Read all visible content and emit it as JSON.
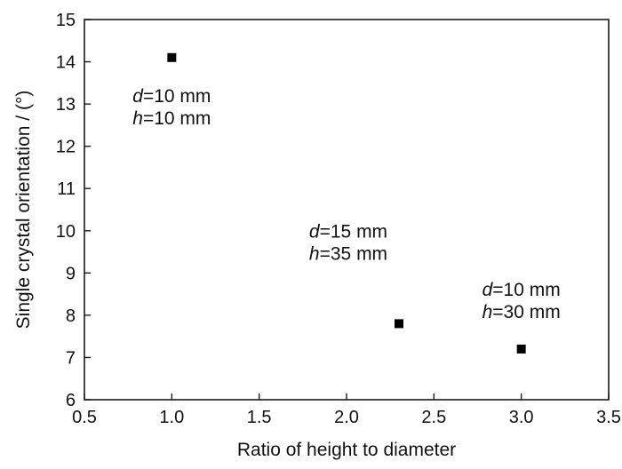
{
  "chart_data": {
    "type": "scatter",
    "title": "",
    "xlabel": "Ratio of height to diameter",
    "ylabel": "Single crystal orientation / (°)",
    "xlim": [
      0.5,
      3.5
    ],
    "ylim": [
      6,
      15
    ],
    "xticks": [
      "0.5",
      "1.0",
      "1.5",
      "2.0",
      "2.5",
      "3.0",
      "3.5"
    ],
    "yticks": [
      "6",
      "7",
      "8",
      "9",
      "10",
      "11",
      "12",
      "13",
      "14",
      "15"
    ],
    "grid": false,
    "legend": "none",
    "marker": "square",
    "marker_color": "#000000",
    "points": [
      {
        "x": 1.0,
        "y": 14.1
      },
      {
        "x": 2.3,
        "y": 7.8
      },
      {
        "x": 3.0,
        "y": 7.2
      }
    ],
    "annotations": [
      {
        "x": 1.0,
        "y": 14.1,
        "lines": [
          {
            "var": "d",
            "text": "=10 mm"
          },
          {
            "var": "h",
            "text": "=10 mm"
          }
        ]
      },
      {
        "x": 2.3,
        "y": 7.8,
        "lines": [
          {
            "var": "d",
            "text": "=15 mm"
          },
          {
            "var": "h",
            "text": "=35 mm"
          }
        ]
      },
      {
        "x": 3.0,
        "y": 7.2,
        "lines": [
          {
            "var": "d",
            "text": "=10 mm"
          },
          {
            "var": "h",
            "text": "=30 mm"
          }
        ]
      }
    ]
  }
}
